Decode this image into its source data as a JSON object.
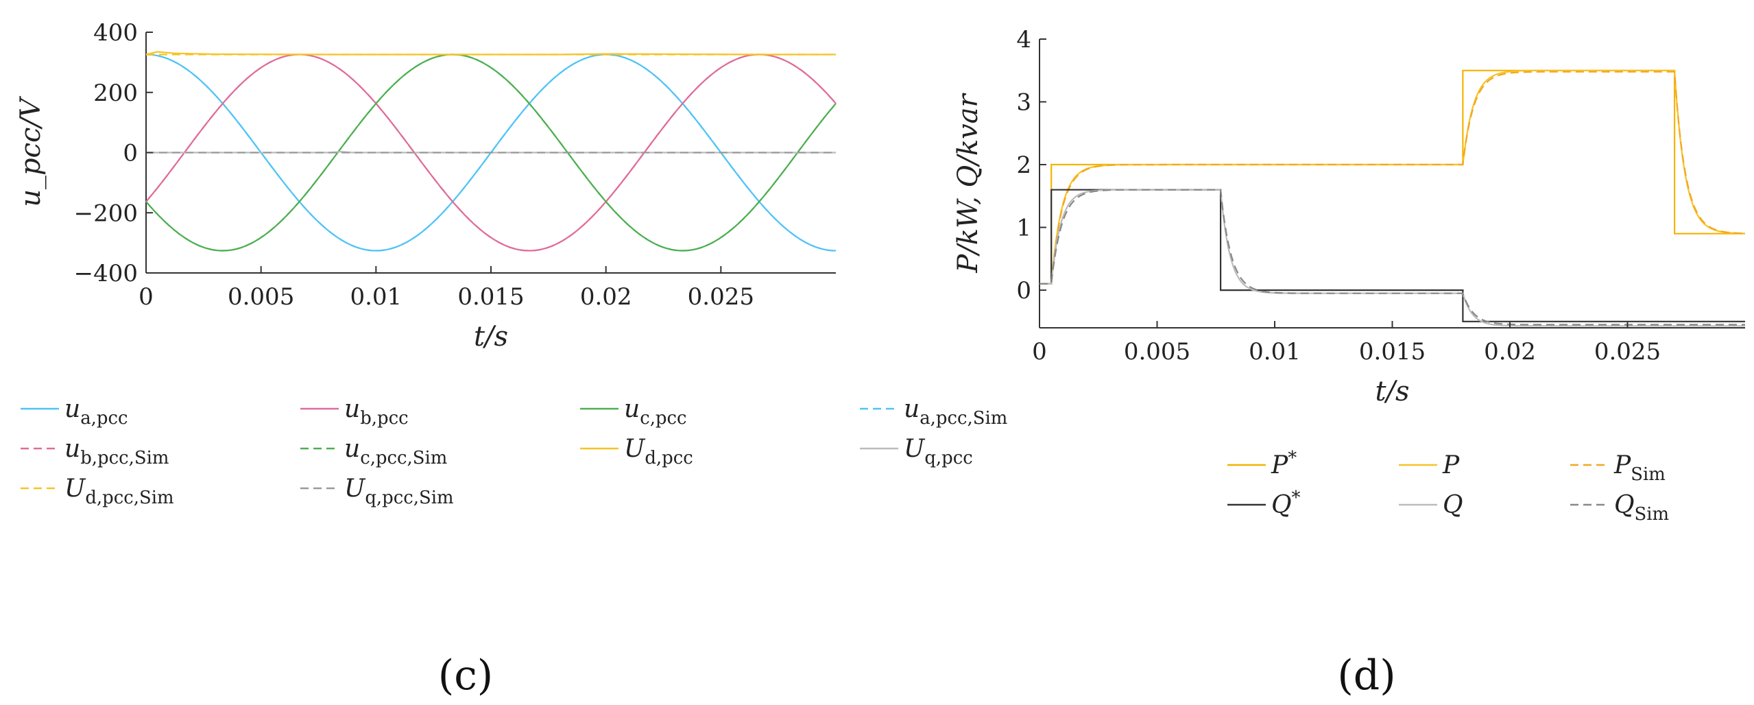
{
  "chart_data": [
    {
      "id": "c",
      "type": "line",
      "panel_label": "(c)",
      "xlabel": "t/s",
      "ylabel": "u_pcc/V",
      "xlim": [
        0,
        0.03
      ],
      "ylim": [
        -400,
        400
      ],
      "x_ticks": [
        0,
        0.005,
        0.01,
        0.015,
        0.02,
        0.025
      ],
      "x_tick_labels": [
        "0",
        "0.005",
        "0.01",
        "0.015",
        "0.02",
        "0.025"
      ],
      "y_ticks": [
        -400,
        -200,
        0,
        200,
        400
      ],
      "y_tick_labels": [
        "−400",
        "−200",
        "0",
        "200",
        "400"
      ],
      "grid": false,
      "legend_position": "bottom",
      "legend_columns": 4,
      "series": [
        {
          "name": "u_a,pcc",
          "label_base": "u",
          "label_sub": "a,pcc",
          "color": "#4fc3f7",
          "dash": "solid",
          "kind": "sine",
          "amplitude": 326,
          "frequency": 50,
          "phase_deg": 0
        },
        {
          "name": "u_b,pcc",
          "label_base": "u",
          "label_sub": "b,pcc",
          "color": "#e06b9a",
          "dash": "solid",
          "kind": "sine",
          "amplitude": 326,
          "frequency": 50,
          "phase_deg": -120
        },
        {
          "name": "u_c,pcc",
          "label_base": "u",
          "label_sub": "c,pcc",
          "color": "#4caf50",
          "dash": "solid",
          "kind": "sine",
          "amplitude": 326,
          "frequency": 50,
          "phase_deg": 120
        },
        {
          "name": "u_a,pcc,Sim",
          "label_base": "u",
          "label_sub": "a,pcc,Sim",
          "color": "#4fc3f7",
          "dash": "dashed",
          "kind": "sine",
          "amplitude": 326,
          "frequency": 50,
          "phase_deg": 0
        },
        {
          "name": "u_b,pcc,Sim",
          "label_base": "u",
          "label_sub": "b,pcc,Sim",
          "color": "#e06b9a",
          "dash": "dashed",
          "kind": "sine",
          "amplitude": 326,
          "frequency": 50,
          "phase_deg": -120
        },
        {
          "name": "u_c,pcc,Sim",
          "label_base": "u",
          "label_sub": "c,pcc,Sim",
          "color": "#4caf50",
          "dash": "dashed",
          "kind": "sine",
          "amplitude": 326,
          "frequency": 50,
          "phase_deg": 120
        },
        {
          "name": "U_d,pcc",
          "label_base": "U",
          "label_sub": "d,pcc",
          "color": "#f7c325",
          "dash": "solid",
          "kind": "points",
          "x": [
            0,
            0.0005,
            0.0012,
            0.003,
            0.008,
            0.018,
            0.02,
            0.027,
            0.03
          ],
          "y": [
            326,
            335,
            330,
            327,
            326,
            326,
            328,
            326,
            326
          ]
        },
        {
          "name": "U_q,pcc",
          "label_base": "U",
          "label_sub": "q,pcc",
          "color": "#bbbbbb",
          "dash": "solid",
          "kind": "points",
          "x": [
            0,
            0.008,
            0.0085,
            0.009,
            0.03
          ],
          "y": [
            0,
            0,
            3,
            0,
            0
          ]
        },
        {
          "name": "U_d,pcc,Sim",
          "label_base": "U",
          "label_sub": "d,pcc,Sim",
          "color": "#f7c325",
          "dash": "dashed",
          "kind": "points",
          "x": [
            0,
            0.03
          ],
          "y": [
            326,
            326
          ]
        },
        {
          "name": "U_q,pcc,Sim",
          "label_base": "U",
          "label_sub": "q,pcc,Sim",
          "color": "#999999",
          "dash": "dashed",
          "kind": "points",
          "x": [
            0,
            0.03
          ],
          "y": [
            0,
            0
          ]
        }
      ]
    },
    {
      "id": "d",
      "type": "line",
      "panel_label": "(d)",
      "xlabel": "t/s",
      "ylabel": "P/kW, Q/kvar",
      "xlim": [
        0,
        0.03
      ],
      "ylim": [
        -0.6,
        4
      ],
      "x_ticks": [
        0,
        0.005,
        0.01,
        0.015,
        0.02,
        0.025
      ],
      "x_tick_labels": [
        "0",
        "0.005",
        "0.01",
        "0.015",
        "0.02",
        "0.025"
      ],
      "y_ticks": [
        0,
        1,
        2,
        3,
        4
      ],
      "y_tick_labels": [
        "0",
        "1",
        "2",
        "3",
        "4"
      ],
      "grid": false,
      "legend_position": "bottom",
      "legend_columns": 3,
      "series": [
        {
          "name": "P*",
          "label_base": "P",
          "label_sup": "*",
          "color": "#f5b400",
          "dash": "solid",
          "kind": "points",
          "x": [
            0,
            0.0005,
            0.0005,
            0.018,
            0.018,
            0.027,
            0.027,
            0.03
          ],
          "y": [
            0.1,
            0.1,
            2.0,
            2.0,
            3.5,
            3.5,
            0.9,
            0.9
          ]
        },
        {
          "name": "P",
          "label_base": "P",
          "color": "#f7c325",
          "dash": "solid",
          "kind": "steps",
          "start": 0.1,
          "tau": 0.00045,
          "steps": [
            {
              "t": 0.0005,
              "v": 2.0
            },
            {
              "t": 0.018,
              "v": 3.5
            },
            {
              "t": 0.027,
              "v": 0.9
            }
          ]
        },
        {
          "name": "P_Sim",
          "label_base": "P",
          "label_sub": "Sim",
          "color": "#f5a623",
          "dash": "dashed",
          "kind": "steps",
          "start": 0.1,
          "tau": 0.00047,
          "steps": [
            {
              "t": 0.0005,
              "v": 2.0
            },
            {
              "t": 0.018,
              "v": 3.48
            },
            {
              "t": 0.027,
              "v": 0.9
            }
          ]
        },
        {
          "name": "Q*",
          "label_base": "Q",
          "label_sup": "*",
          "color": "#333333",
          "dash": "solid",
          "kind": "points",
          "x": [
            0,
            0.0005,
            0.0005,
            0.0077,
            0.0077,
            0.018,
            0.018,
            0.03
          ],
          "y": [
            0.1,
            0.1,
            1.6,
            1.6,
            0.0,
            0.0,
            -0.5,
            -0.5
          ]
        },
        {
          "name": "Q",
          "label_base": "Q",
          "color": "#bbbbbb",
          "dash": "solid",
          "kind": "steps",
          "start": 0.1,
          "tau": 0.0004,
          "steps": [
            {
              "t": 0.0005,
              "v": 1.6
            },
            {
              "t": 0.0077,
              "v": -0.05
            },
            {
              "t": 0.018,
              "v": -0.57
            }
          ]
        },
        {
          "name": "Q_Sim",
          "label_base": "Q",
          "label_sub": "Sim",
          "color": "#888888",
          "dash": "dashed",
          "kind": "steps",
          "start": 0.1,
          "tau": 0.00045,
          "steps": [
            {
              "t": 0.0005,
              "v": 1.6
            },
            {
              "t": 0.0077,
              "v": -0.05
            },
            {
              "t": 0.018,
              "v": -0.55
            }
          ]
        }
      ]
    }
  ]
}
